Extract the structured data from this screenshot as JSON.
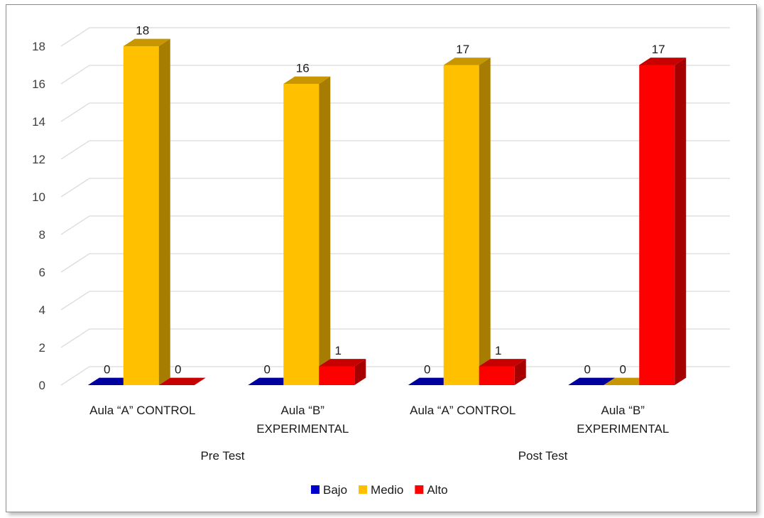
{
  "chart_data": {
    "type": "bar",
    "title": "",
    "xlabel": "",
    "ylabel": "",
    "ylim": [
      0,
      18
    ],
    "yticks": [
      0,
      2,
      4,
      6,
      8,
      10,
      12,
      14,
      16,
      18
    ],
    "groups": [
      {
        "label": "Pre Test",
        "categories": [
          0,
          1
        ]
      },
      {
        "label": "Post Test",
        "categories": [
          2,
          3
        ]
      }
    ],
    "categories": [
      [
        "Aula “A” CONTROL"
      ],
      [
        "Aula “B”",
        "EXPERIMENTAL"
      ],
      [
        "Aula “A” CONTROL"
      ],
      [
        "Aula “B”",
        "EXPERIMENTAL"
      ]
    ],
    "series": [
      {
        "name": "Bajo",
        "values": [
          0,
          0,
          0,
          0
        ],
        "color": "#0000cc"
      },
      {
        "name": "Medio",
        "values": [
          18,
          16,
          17,
          0
        ],
        "color": "#ffc000"
      },
      {
        "name": "Alto",
        "values": [
          0,
          1,
          1,
          17
        ],
        "color": "#ff0000"
      }
    ],
    "grid": true,
    "legend": "bottom",
    "style": "3d-clustered-column"
  }
}
